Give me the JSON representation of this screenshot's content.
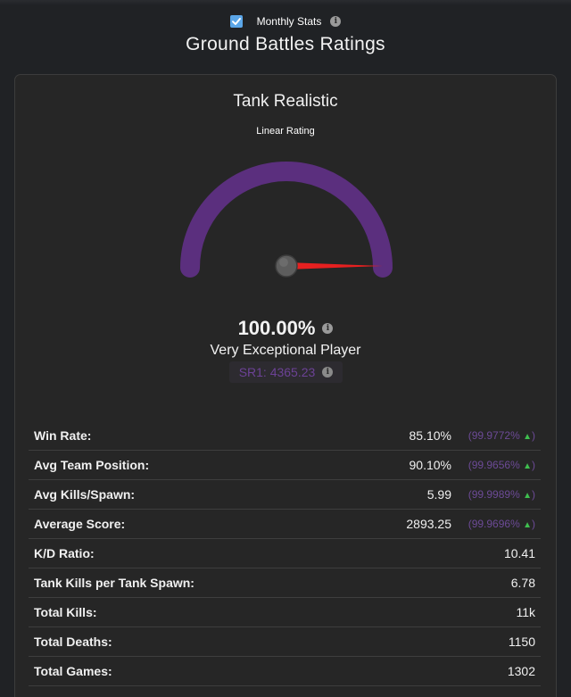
{
  "header": {
    "monthly_stats_label": "Monthly Stats",
    "monthly_stats_checked": true,
    "page_title": "Ground Battles Ratings"
  },
  "card": {
    "title": "Tank Realistic",
    "gauge_label": "Linear Rating",
    "gauge_value_fraction": 1.0,
    "percentile": "100.00%",
    "rank": "Very Exceptional Player",
    "sr_label": "SR1: 4365.23"
  },
  "colors": {
    "gauge_arc": "#5b2f7e",
    "needle": "#e62020",
    "percentile_text": "#6c4a96",
    "up_arrow": "#3fbf4f",
    "checkbox": "#5ba6e8"
  },
  "stats": [
    {
      "label": "Win Rate:",
      "value": "85.10%",
      "percentile": "(99.9772% ",
      "arrow": "▲",
      "trailing": ")"
    },
    {
      "label": "Avg Team Position:",
      "value": "90.10%",
      "percentile": "(99.9656% ",
      "arrow": "▲",
      "trailing": ")"
    },
    {
      "label": "Avg Kills/Spawn:",
      "value": "5.99",
      "percentile": "(99.9989% ",
      "arrow": "▲",
      "trailing": ")"
    },
    {
      "label": "Average Score:",
      "value": "2893.25",
      "percentile": "(99.9696% ",
      "arrow": "▲",
      "trailing": ")"
    },
    {
      "label": "K/D Ratio:",
      "value": "10.41"
    },
    {
      "label": "Tank Kills per Tank Spawn:",
      "value": "6.78"
    },
    {
      "label": "Total Kills:",
      "value": "11k"
    },
    {
      "label": "Total Deaths:",
      "value": "1150"
    },
    {
      "label": "Total Games:",
      "value": "1302"
    }
  ]
}
